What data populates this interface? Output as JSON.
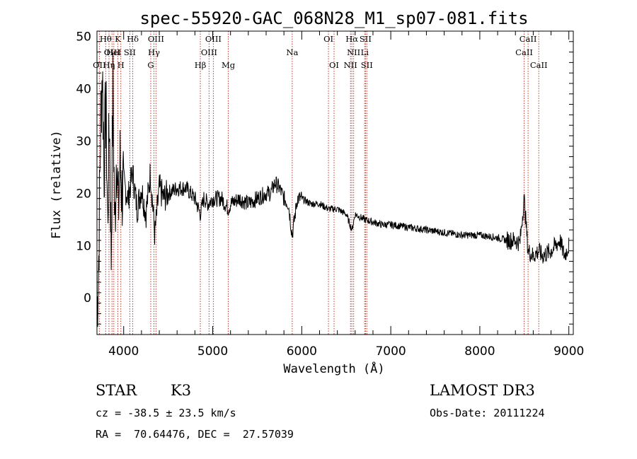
{
  "chart_data": {
    "type": "line",
    "title": "spec-55920-GAC_068N28_M1_sp07-081.fits",
    "xlabel": "Wavelength (Å)",
    "ylabel": "Flux (relative)",
    "xlim": [
      3700,
      9050
    ],
    "ylim": [
      -7,
      51
    ],
    "xticks": [
      4000,
      5000,
      6000,
      7000,
      8000,
      9000
    ],
    "yticks": [
      0,
      10,
      20,
      30,
      40,
      50
    ],
    "grid": false,
    "series": [
      {
        "name": "Flux",
        "x": [
          3700,
          3720,
          3740,
          3760,
          3780,
          3800,
          3820,
          3840,
          3860,
          3880,
          3900,
          3920,
          3940,
          3960,
          3980,
          4000,
          4050,
          4100,
          4150,
          4200,
          4250,
          4300,
          4350,
          4400,
          4450,
          4500,
          4600,
          4700,
          4800,
          4861,
          4900,
          4950,
          5000,
          5100,
          5175,
          5200,
          5300,
          5400,
          5500,
          5600,
          5650,
          5700,
          5750,
          5800,
          5850,
          5893,
          5950,
          6000,
          6100,
          6200,
          6300,
          6400,
          6500,
          6563,
          6600,
          6700,
          6800,
          6900,
          7000,
          7200,
          7400,
          7600,
          7800,
          8000,
          8200,
          8300,
          8400,
          8450,
          8498,
          8542,
          8600,
          8662,
          8700,
          8800,
          8900,
          8950,
          9000
        ],
        "values": [
          -3,
          8,
          32,
          44,
          25,
          38,
          14,
          35,
          8,
          40,
          12,
          30,
          16,
          26,
          20,
          22,
          19,
          24,
          17,
          21,
          16,
          24,
          12,
          21,
          19,
          20,
          21,
          21,
          19,
          16,
          19,
          18,
          19,
          19,
          17,
          18,
          19,
          18,
          19,
          20,
          20,
          22,
          21,
          19,
          18,
          12,
          19,
          19,
          18,
          18,
          17,
          17,
          16,
          13,
          16,
          15,
          14.5,
          14,
          14,
          13.5,
          13,
          12.5,
          12,
          12,
          11.5,
          11,
          11,
          10.5,
          19,
          9,
          8,
          9,
          8,
          9,
          11,
          8,
          10
        ]
      }
    ],
    "spectral_lines": [
      {
        "label": "OII",
        "wavelength": 3727,
        "row": 2
      },
      {
        "label": "Hθ",
        "wavelength": 3798,
        "row": 0
      },
      {
        "label": "Hη",
        "wavelength": 3835,
        "row": 2
      },
      {
        "label": "OIII",
        "wavelength": 3869,
        "row": 1
      },
      {
        "label": "HeI",
        "wavelength": 3889,
        "row": 1
      },
      {
        "label": "K",
        "wavelength": 3934,
        "row": 0
      },
      {
        "label": "H",
        "wavelength": 3968,
        "row": 2
      },
      {
        "label": "SII",
        "wavelength": 4069,
        "row": 1
      },
      {
        "label": "Hδ",
        "wavelength": 4102,
        "row": 0
      },
      {
        "label": "G",
        "wavelength": 4304,
        "row": 2
      },
      {
        "label": "Hγ",
        "wavelength": 4340,
        "row": 1
      },
      {
        "label": "OIII",
        "wavelength": 4363,
        "row": 0
      },
      {
        "label": "Hβ",
        "wavelength": 4861,
        "row": 2
      },
      {
        "label": "OIII",
        "wavelength": 4959,
        "row": 1
      },
      {
        "label": "OIII",
        "wavelength": 5007,
        "row": 0
      },
      {
        "label": "Mg",
        "wavelength": 5175,
        "row": 2
      },
      {
        "label": "Na",
        "wavelength": 5893,
        "row": 1
      },
      {
        "label": "OI",
        "wavelength": 6300,
        "row": 0
      },
      {
        "label": "OI",
        "wavelength": 6363,
        "row": 2
      },
      {
        "label": "NII",
        "wavelength": 6548,
        "row": 2
      },
      {
        "label": "Hα",
        "wavelength": 6563,
        "row": 0
      },
      {
        "label": "NII",
        "wavelength": 6583,
        "row": 1
      },
      {
        "label": "Li",
        "wavelength": 6707,
        "row": 1
      },
      {
        "label": "SII",
        "wavelength": 6716,
        "row": 0
      },
      {
        "label": "SII",
        "wavelength": 6731,
        "row": 2
      },
      {
        "label": "CaII",
        "wavelength": 8498,
        "row": 1
      },
      {
        "label": "CaII",
        "wavelength": 8542,
        "row": 0
      },
      {
        "label": "CaII",
        "wavelength": 8662,
        "row": 2
      }
    ],
    "line_color": "#000000",
    "marker_color": "#c0392b"
  },
  "info": {
    "object_class": "STAR",
    "subclass": "K3",
    "survey": "LAMOST DR3",
    "cz": "cz = -38.5 ± 23.5 km/s",
    "obs_date": "Obs-Date: 20111224",
    "coords": "RA =  70.64476, DEC =  27.57039"
  }
}
